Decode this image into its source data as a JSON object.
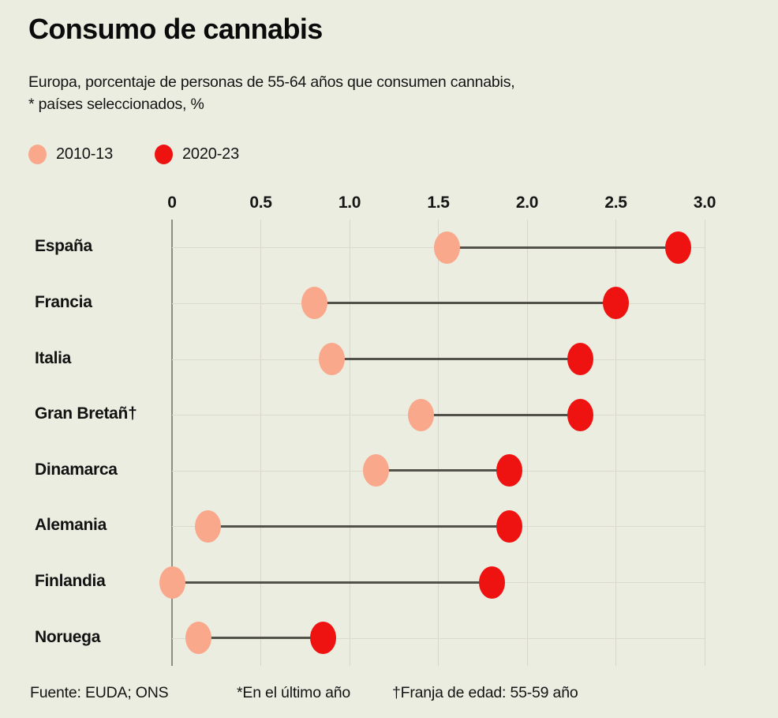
{
  "title": "Consumo de cannabis",
  "subtitle": {
    "line1": "Europa, porcentaje de personas de 55-64 años que consumen cannabis,",
    "line2": "* países seleccionados, %"
  },
  "legend": {
    "items": [
      {
        "label": "2010-13",
        "color": "#F9A88B",
        "icon": "salmon-dot-icon"
      },
      {
        "label": "2020-23",
        "color": "#EE1311",
        "icon": "red-dot-icon"
      }
    ]
  },
  "footer": {
    "source": "Fuente: EUDA; ONS",
    "note1": "*En el último año",
    "note2": "†Franja de edad: 55-59 año"
  },
  "colors": {
    "background": "#ECEDE1",
    "series_2010_13": "#F9A88B",
    "series_2020_23": "#EE1311",
    "connector": "#52524b",
    "gridline": "#d7d6c9",
    "row_line": "#dbdacd",
    "zero_axis": "#8f8e84",
    "text": "#0d0d0d"
  },
  "chart_data": {
    "type": "scatter",
    "variant": "dumbbell",
    "title": "Consumo de cannabis",
    "xlabel": "",
    "ylabel": "",
    "categories": [
      "España",
      "Francia",
      "Italia",
      "Gran Bretañ†",
      "Dinamarca",
      "Alemania",
      "Finlandia",
      "Noruega"
    ],
    "series": [
      {
        "name": "2010-13",
        "color": "#F9A88B",
        "values": [
          1.55,
          0.8,
          0.9,
          1.4,
          1.15,
          0.2,
          0.0,
          0.15
        ]
      },
      {
        "name": "2020-23",
        "color": "#EE1311",
        "values": [
          2.85,
          2.5,
          2.3,
          2.3,
          1.9,
          1.9,
          1.8,
          0.85
        ]
      }
    ],
    "x_ticks": [
      "0",
      "0.5",
      "1.0",
      "1.5",
      "2.0",
      "2.5",
      "3.0"
    ],
    "x_tick_values": [
      0,
      0.5,
      1.0,
      1.5,
      2.0,
      2.5,
      3.0
    ],
    "xlim": [
      0,
      3.0
    ],
    "grid": true,
    "legend_position": "top-left"
  }
}
